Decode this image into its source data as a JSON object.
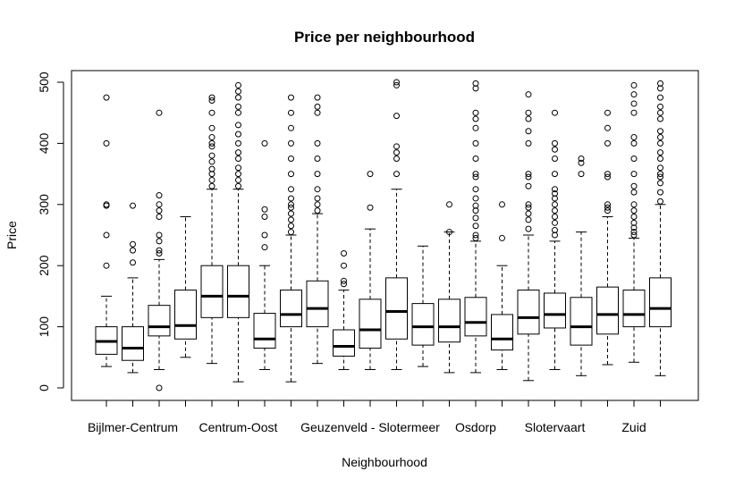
{
  "chart_data": {
    "type": "boxplot",
    "title": "Price per neighbourhood",
    "xlabel": "Neighbourhood",
    "ylabel": "Price",
    "ylim": [
      0,
      500
    ],
    "y_ticks": [
      0,
      100,
      200,
      300,
      400,
      500
    ],
    "x_tick_labels": [
      "Bijlmer-Centrum",
      "Centrum-Oost",
      "Geuzenveld - Slotermeer",
      "Osdorp",
      "Slotervaart",
      "Zuid"
    ],
    "x_tick_label_box_index": [
      1,
      5,
      10,
      14,
      17,
      20
    ],
    "boxes": [
      {
        "min": 35,
        "q1": 55,
        "median": 76,
        "q3": 100,
        "max": 150,
        "outliers": [
          200,
          250,
          298,
          300,
          400,
          475
        ]
      },
      {
        "min": 25,
        "q1": 45,
        "median": 65,
        "q3": 100,
        "max": 180,
        "outliers": [
          205,
          225,
          235,
          298
        ]
      },
      {
        "min": 30,
        "q1": 85,
        "median": 100,
        "q3": 135,
        "max": 210,
        "outliers": [
          0,
          220,
          225,
          240,
          250,
          280,
          290,
          300,
          315,
          450
        ]
      },
      {
        "min": 50,
        "q1": 80,
        "median": 102,
        "q3": 160,
        "max": 280,
        "outliers": []
      },
      {
        "min": 40,
        "q1": 115,
        "median": 150,
        "q3": 200,
        "max": 325,
        "outliers": [
          330,
          340,
          350,
          358,
          370,
          380,
          395,
          400,
          410,
          425,
          450,
          470,
          475
        ]
      },
      {
        "min": 10,
        "q1": 115,
        "median": 150,
        "q3": 200,
        "max": 325,
        "outliers": [
          330,
          340,
          350,
          360,
          375,
          385,
          400,
          415,
          430,
          450,
          460,
          475,
          485,
          495
        ]
      },
      {
        "min": 30,
        "q1": 65,
        "median": 80,
        "q3": 122,
        "max": 200,
        "outliers": [
          230,
          250,
          280,
          292,
          400
        ]
      },
      {
        "min": 10,
        "q1": 100,
        "median": 120,
        "q3": 160,
        "max": 250,
        "outliers": [
          255,
          265,
          275,
          285,
          295,
          300,
          310,
          325,
          350,
          375,
          400,
          425,
          450,
          475
        ]
      },
      {
        "min": 40,
        "q1": 100,
        "median": 130,
        "q3": 175,
        "max": 285,
        "outliers": [
          290,
          300,
          310,
          325,
          350,
          375,
          400,
          450,
          460,
          475
        ]
      },
      {
        "min": 30,
        "q1": 52,
        "median": 68,
        "q3": 95,
        "max": 160,
        "outliers": [
          170,
          175,
          200,
          220
        ]
      },
      {
        "min": 30,
        "q1": 65,
        "median": 95,
        "q3": 145,
        "max": 260,
        "outliers": [
          295,
          350
        ]
      },
      {
        "min": 30,
        "q1": 80,
        "median": 125,
        "q3": 180,
        "max": 325,
        "outliers": [
          350,
          375,
          385,
          395,
          445,
          495,
          500
        ]
      },
      {
        "min": 35,
        "q1": 70,
        "median": 100,
        "q3": 138,
        "max": 232,
        "outliers": []
      },
      {
        "min": 25,
        "q1": 75,
        "median": 100,
        "q3": 145,
        "max": 255,
        "outliers": [
          255,
          300
        ]
      },
      {
        "min": 25,
        "q1": 85,
        "median": 107,
        "q3": 148,
        "max": 240,
        "outliers": [
          245,
          250,
          265,
          278,
          290,
          298,
          310,
          325,
          345,
          350,
          375,
          400,
          425,
          440,
          450,
          490,
          498
        ]
      },
      {
        "min": 30,
        "q1": 62,
        "median": 80,
        "q3": 120,
        "max": 200,
        "outliers": [
          245,
          300
        ]
      },
      {
        "min": 12,
        "q1": 88,
        "median": 115,
        "q3": 160,
        "max": 250,
        "outliers": [
          260,
          275,
          285,
          295,
          300,
          330,
          345,
          350,
          400,
          420,
          440,
          450,
          480
        ]
      },
      {
        "min": 30,
        "q1": 98,
        "median": 120,
        "q3": 155,
        "max": 240,
        "outliers": [
          250,
          258,
          270,
          280,
          290,
          300,
          310,
          318,
          325,
          350,
          375,
          390,
          400,
          450
        ]
      },
      {
        "min": 20,
        "q1": 70,
        "median": 100,
        "q3": 148,
        "max": 255,
        "outliers": [
          350,
          368,
          375
        ]
      },
      {
        "min": 38,
        "q1": 88,
        "median": 120,
        "q3": 165,
        "max": 280,
        "outliers": [
          290,
          295,
          300,
          345,
          350,
          400,
          425,
          450
        ]
      },
      {
        "min": 42,
        "q1": 100,
        "median": 120,
        "q3": 160,
        "max": 245,
        "outliers": [
          250,
          255,
          262,
          270,
          280,
          290,
          300,
          320,
          330,
          350,
          375,
          400,
          410,
          450,
          465,
          480,
          495
        ]
      },
      {
        "min": 20,
        "q1": 100,
        "median": 130,
        "q3": 180,
        "max": 300,
        "outliers": [
          305,
          320,
          335,
          345,
          350,
          360,
          375,
          385,
          400,
          410,
          420,
          440,
          450,
          460,
          475,
          490,
          498
        ]
      }
    ],
    "grid": false,
    "legend": "none"
  }
}
